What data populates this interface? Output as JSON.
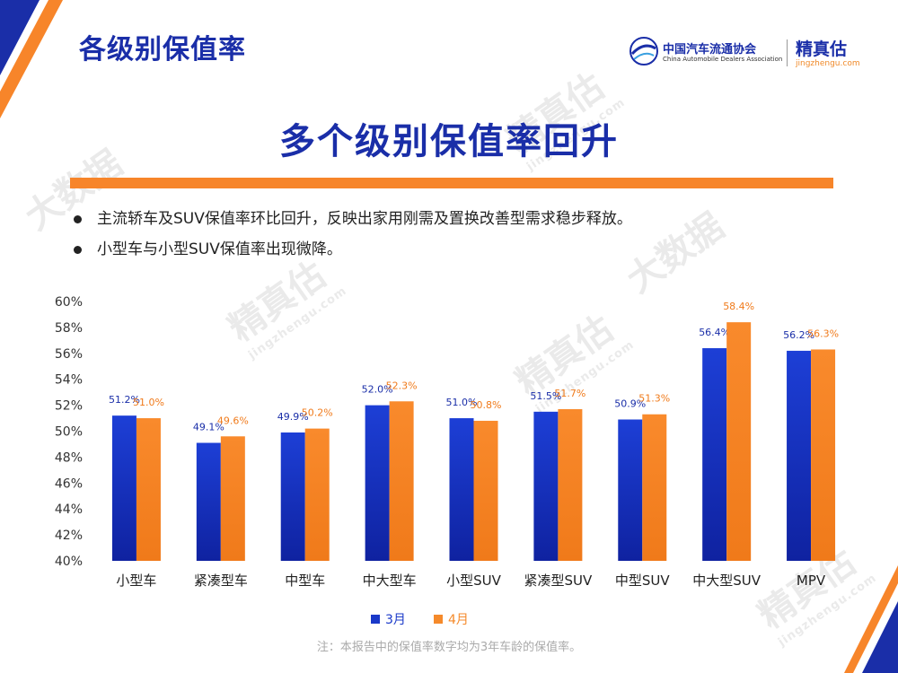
{
  "header": {
    "page_title": "各级别保值率",
    "cada_name": "中国汽车流通协会",
    "cada_english": "China Automobile Dealers Association",
    "jzg_name": "精真估",
    "jzg_url": "jingzhengu.com"
  },
  "watermark": {
    "brand": "精真估",
    "url": "jingzhengu.com",
    "alt": "大数据"
  },
  "main_heading": "多个级别保值率回升",
  "bullets": [
    "主流轿车及SUV保值率环比回升，反映出家用刚需及置换改善型需求稳步释放。",
    "小型车与小型SUV保值率出现微降。"
  ],
  "colors": {
    "primary": "#1a2ea8",
    "accent": "#f7852a",
    "series1": "#1a39c9",
    "series2": "#f58a2b"
  },
  "chart_data": {
    "type": "bar",
    "categories": [
      "小型车",
      "紧凑型车",
      "中型车",
      "中大型车",
      "小型SUV",
      "紧凑型SUV",
      "中型SUV",
      "中大型SUV",
      "MPV"
    ],
    "series": [
      {
        "name": "3月",
        "values": [
          51.2,
          49.1,
          49.9,
          52.0,
          51.0,
          51.5,
          50.9,
          56.4,
          56.2
        ],
        "labels": [
          "51.2%",
          "49.1%",
          "49.9%",
          "52.0%",
          "51.0%",
          "51.5%",
          "50.9%",
          "56.4%",
          "56.2%"
        ]
      },
      {
        "name": "4月",
        "values": [
          51.0,
          49.6,
          50.2,
          52.3,
          50.8,
          51.7,
          51.3,
          58.4,
          56.3
        ],
        "labels": [
          "51.0%",
          "49.6%",
          "50.2%",
          "52.3%",
          "50.8%",
          "51.7%",
          "51.3%",
          "58.4%",
          "56.3%"
        ]
      }
    ],
    "yticks": [
      "40%",
      "42%",
      "44%",
      "46%",
      "48%",
      "50%",
      "52%",
      "54%",
      "56%",
      "58%",
      "60%"
    ],
    "ylim": [
      40,
      60
    ],
    "legend_position": "bottom",
    "grid": false
  },
  "footnote": "注：本报告中的保值率数字均为3年车龄的保值率。"
}
